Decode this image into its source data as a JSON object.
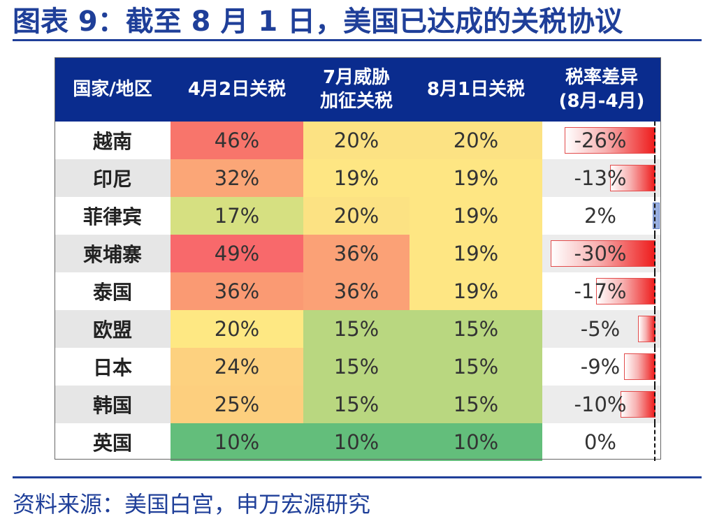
{
  "title": "图表 9：截至 8 月 1 日，美国已达成的关税协议",
  "source": "资料来源：美国白宫，申万宏源研究",
  "headers": {
    "country": "国家/地区",
    "apr2": "4月2日关税",
    "jul_line1": "7月威胁",
    "jul_line2": "加征关税",
    "aug1": "8月1日关税",
    "diff_line1": "税率差异",
    "diff_line2": "(8月-4月)"
  },
  "rows": [
    {
      "country": "越南",
      "apr2": "46%",
      "jul": "20%",
      "aug1": "20%",
      "diff": "-26%",
      "diff_value": -26,
      "apr2_color": "#f8756b",
      "jul_color": "#fce283",
      "aug1_color": "#fce283"
    },
    {
      "country": "印尼",
      "apr2": "32%",
      "jul": "19%",
      "aug1": "19%",
      "diff": "-13%",
      "diff_value": -13,
      "apr2_color": "#fba677",
      "jul_color": "#fee683",
      "aug1_color": "#fee683"
    },
    {
      "country": "菲律宾",
      "apr2": "17%",
      "jul": "20%",
      "aug1": "19%",
      "diff": "2%",
      "diff_value": 2,
      "apr2_color": "#d6e081",
      "jul_color": "#fce283",
      "aug1_color": "#fee683"
    },
    {
      "country": "柬埔寨",
      "apr2": "49%",
      "jul": "36%",
      "aug1": "19%",
      "diff": "-30%",
      "diff_value": -30,
      "apr2_color": "#f8696b",
      "jul_color": "#fba176",
      "aug1_color": "#fee683"
    },
    {
      "country": "泰国",
      "apr2": "36%",
      "jul": "36%",
      "aug1": "19%",
      "diff": "-17%",
      "diff_value": -17,
      "apr2_color": "#fa9a73",
      "jul_color": "#fba176",
      "aug1_color": "#fee683"
    },
    {
      "country": "欧盟",
      "apr2": "20%",
      "jul": "15%",
      "aug1": "15%",
      "diff": "-5%",
      "diff_value": -5,
      "apr2_color": "#fee883",
      "jul_color": "#b9d780",
      "aug1_color": "#b9d780"
    },
    {
      "country": "日本",
      "apr2": "24%",
      "jul": "15%",
      "aug1": "15%",
      "diff": "-9%",
      "diff_value": -9,
      "apr2_color": "#fdd17f",
      "jul_color": "#b9d780",
      "aug1_color": "#b9d780"
    },
    {
      "country": "韩国",
      "apr2": "25%",
      "jul": "15%",
      "aug1": "15%",
      "diff": "-10%",
      "diff_value": -10,
      "apr2_color": "#fdcf7e",
      "jul_color": "#b9d780",
      "aug1_color": "#b9d780"
    },
    {
      "country": "英国",
      "apr2": "10%",
      "jul": "10%",
      "aug1": "10%",
      "diff": "0%",
      "diff_value": 0,
      "apr2_color": "#63be7b",
      "jul_color": "#63be7b",
      "aug1_color": "#63be7b"
    }
  ],
  "colors": {
    "header_bg": "#0a2c8e",
    "title": "#1f3f99",
    "neg_bar": "#ee1c1c",
    "pos_bar": "#9ab0e0"
  }
}
